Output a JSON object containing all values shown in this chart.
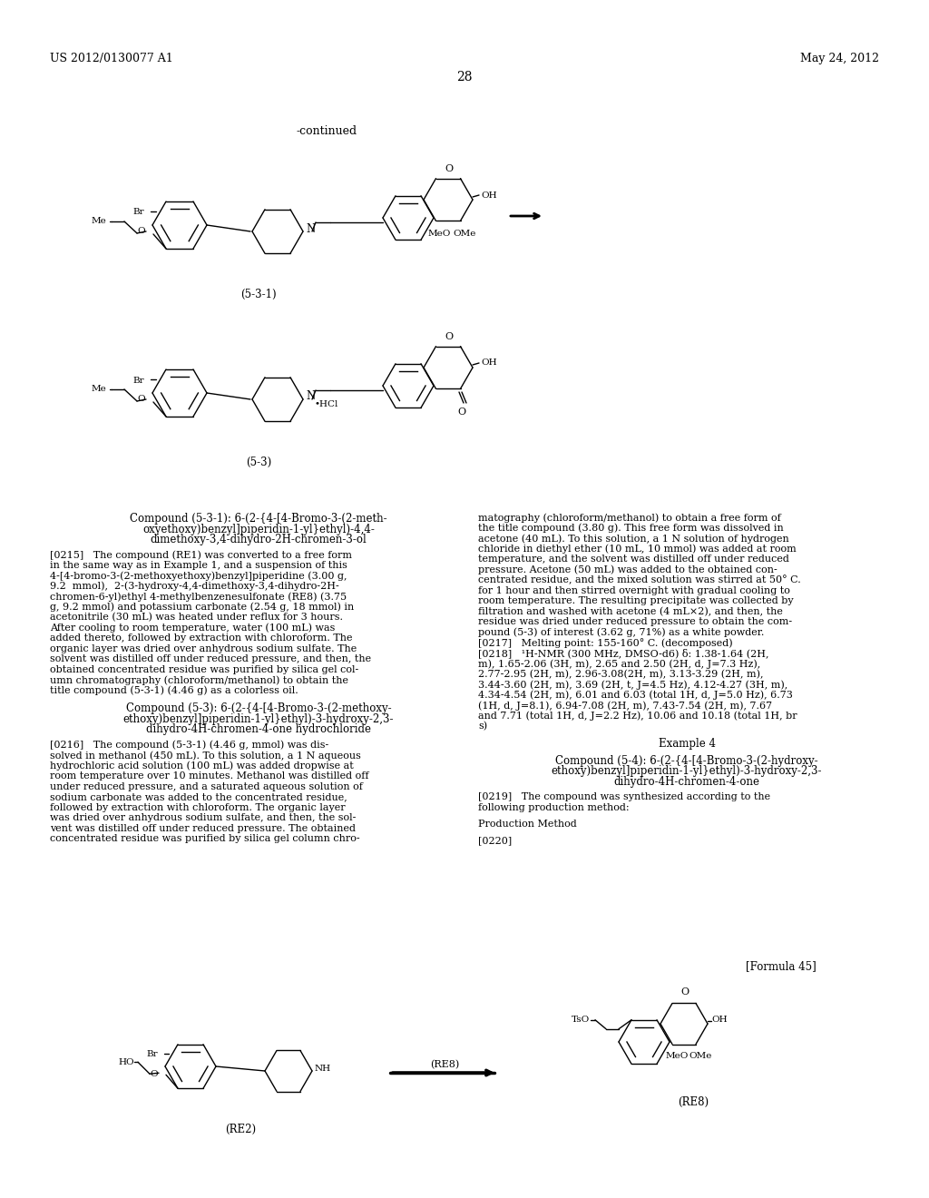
{
  "page_number": "28",
  "header_left": "US 2012/0130077 A1",
  "header_right": "May 24, 2012",
  "continued_label": "-continued",
  "compound_531_label": "(5-3-1)",
  "compound_53_label": "(5-3)",
  "formula45_label": "[Formula 45]",
  "compound_re2_label": "(RE2)",
  "compound_re8_label": "(RE8)",
  "bg_color": "#ffffff",
  "text_color": "#000000"
}
